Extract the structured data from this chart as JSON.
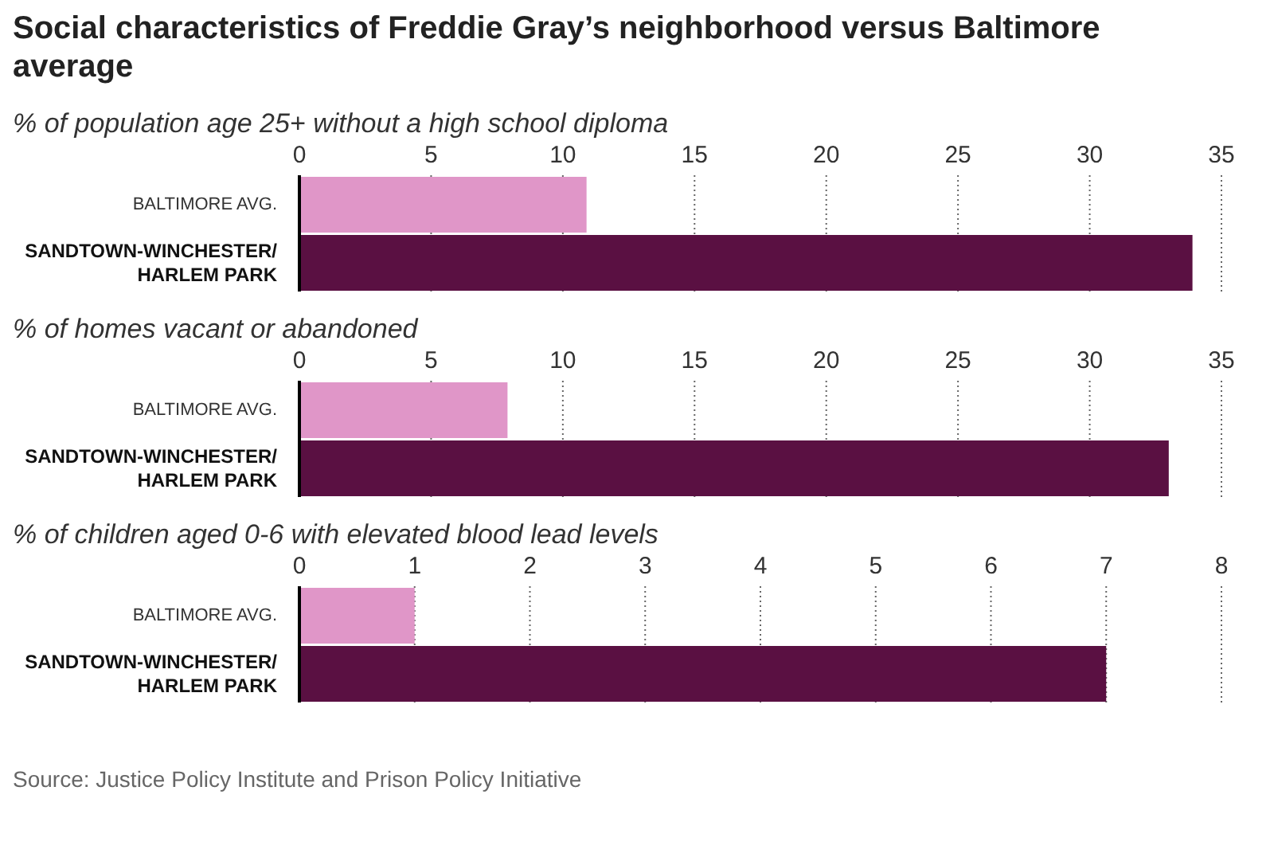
{
  "chart_data": [
    {
      "type": "bar",
      "orientation": "horizontal",
      "title": "Social characteristics of Freddie Gray’s neighborhood versus Baltimore average",
      "subtitle": "% of population age 25+ without a high school diploma",
      "categories": [
        "BALTIMORE AVG.",
        "SANDTOWN-WINCHESTER/ HARLEM PARK"
      ],
      "values": [
        10.9,
        33.9
      ],
      "colors": [
        "#e096c8",
        "#5a1042"
      ],
      "xlim": [
        0,
        35
      ],
      "xticks": [
        0,
        5,
        10,
        15,
        20,
        25,
        30,
        35
      ],
      "grid": "x"
    },
    {
      "type": "bar",
      "orientation": "horizontal",
      "subtitle": "% of homes vacant or abandoned",
      "categories": [
        "BALTIMORE AVG.",
        "SANDTOWN-WINCHESTER/ HARLEM PARK"
      ],
      "values": [
        7.9,
        33
      ],
      "colors": [
        "#e096c8",
        "#5a1042"
      ],
      "xlim": [
        0,
        35
      ],
      "xticks": [
        0,
        5,
        10,
        15,
        20,
        25,
        30,
        35
      ],
      "grid": "x"
    },
    {
      "type": "bar",
      "orientation": "horizontal",
      "subtitle": "% of children aged 0-6 with elevated blood lead levels",
      "categories": [
        "BALTIMORE AVG.",
        "SANDTOWN-WINCHESTER/ HARLEM PARK"
      ],
      "values": [
        1,
        7
      ],
      "colors": [
        "#e096c8",
        "#5a1042"
      ],
      "xlim": [
        0,
        8
      ],
      "xticks": [
        0,
        1,
        2,
        3,
        4,
        5,
        6,
        7,
        8
      ],
      "grid": "x",
      "annotations": [
        "Source: Justice Policy Institute and Prison Policy Initiative"
      ]
    }
  ]
}
